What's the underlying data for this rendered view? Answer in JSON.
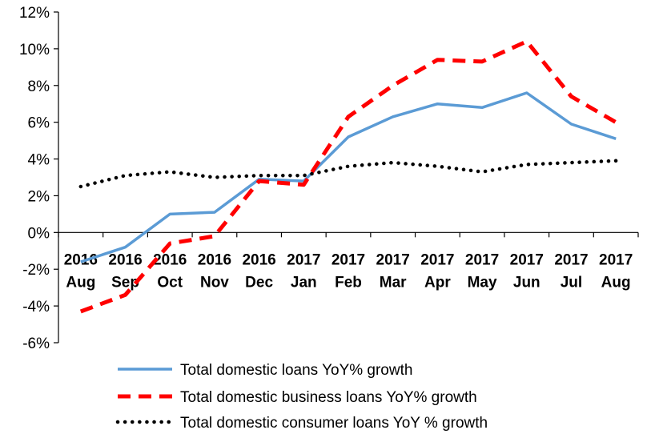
{
  "chart_data": {
    "type": "line",
    "title": "",
    "xlabel": "",
    "ylabel": "",
    "categories": [
      {
        "year": "2016",
        "month": "Aug"
      },
      {
        "year": "2016",
        "month": "Sep"
      },
      {
        "year": "2016",
        "month": "Oct"
      },
      {
        "year": "2016",
        "month": "Nov"
      },
      {
        "year": "2016",
        "month": "Dec"
      },
      {
        "year": "2017",
        "month": "Jan"
      },
      {
        "year": "2017",
        "month": "Feb"
      },
      {
        "year": "2017",
        "month": "Mar"
      },
      {
        "year": "2017",
        "month": "Apr"
      },
      {
        "year": "2017",
        "month": "May"
      },
      {
        "year": "2017",
        "month": "Jun"
      },
      {
        "year": "2017",
        "month": "Jul"
      },
      {
        "year": "2017",
        "month": "Aug"
      }
    ],
    "ylim": [
      -6,
      12
    ],
    "yticks": [
      -6,
      -4,
      -2,
      0,
      2,
      4,
      6,
      8,
      10,
      12
    ],
    "ytick_suffix": "%",
    "grid": false,
    "legend_position": "bottom",
    "series": [
      {
        "name": "Total domestic loans YoY% growth",
        "color": "#5b9bd5",
        "style": "solid",
        "values": [
          -1.6,
          -0.8,
          1.0,
          1.1,
          2.9,
          2.8,
          5.2,
          6.3,
          7.0,
          6.8,
          7.6,
          5.9,
          5.1
        ]
      },
      {
        "name": "Total domestic business loans YoY% growth",
        "color": "#ff0000",
        "style": "dashed",
        "values": [
          -4.3,
          -3.4,
          -0.6,
          -0.2,
          2.8,
          2.6,
          6.3,
          8.0,
          9.4,
          9.3,
          10.4,
          7.4,
          6.0
        ]
      },
      {
        "name": "Total domestic consumer loans YoY % growth",
        "color": "#000000",
        "style": "dotted",
        "values": [
          2.5,
          3.1,
          3.3,
          3.0,
          3.1,
          3.1,
          3.6,
          3.8,
          3.6,
          3.3,
          3.7,
          3.8,
          3.9
        ]
      }
    ]
  }
}
